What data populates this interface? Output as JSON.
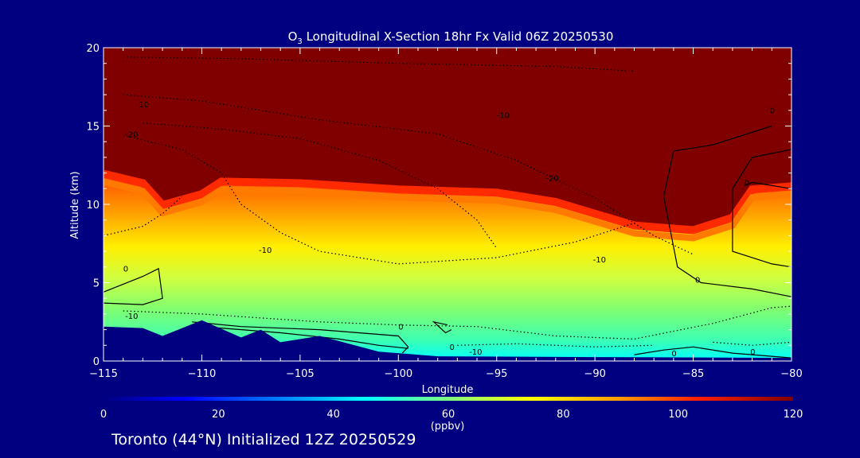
{
  "chart_data": {
    "type": "heatmap",
    "title_prefix": "O",
    "title_sub": "3",
    "title_rest": " Longitudinal X-Section 18hr  Fx Valid 06Z 20250530",
    "xlabel": "Longitude",
    "ylabel": "Altitude (km)",
    "xlim": [
      -115,
      -80
    ],
    "ylim": [
      0,
      20
    ],
    "x_ticks": [
      -115,
      -110,
      -105,
      -100,
      -95,
      -90,
      -85,
      -80
    ],
    "x_tick_labels": [
      "−115",
      "−110",
      "−105",
      "−100",
      "−95",
      "−90",
      "−85",
      "−80"
    ],
    "y_ticks": [
      0,
      5,
      10,
      15,
      20
    ],
    "y_tick_labels": [
      "0",
      "5",
      "10",
      "15",
      "20"
    ],
    "colorbar": {
      "label": "(ppbv)",
      "range": [
        0,
        120
      ],
      "ticks": [
        0,
        20,
        40,
        60,
        80,
        100,
        120
      ],
      "tick_labels": [
        "0",
        "20",
        "40",
        "60",
        "80",
        "100",
        "120"
      ]
    },
    "tropopause_km": [
      [
        -115,
        11.8
      ],
      [
        -113,
        11.2
      ],
      [
        -112,
        9.8
      ],
      [
        -110,
        10.5
      ],
      [
        -109,
        11.3
      ],
      [
        -105,
        11.2
      ],
      [
        -100,
        10.8
      ],
      [
        -95,
        10.6
      ],
      [
        -92,
        10.0
      ],
      [
        -88,
        8.5
      ],
      [
        -85,
        8.2
      ],
      [
        -83,
        9.0
      ],
      [
        -82,
        10.8
      ],
      [
        -80,
        11.0
      ]
    ],
    "terrain_km": [
      [
        -115,
        2.2
      ],
      [
        -113,
        2.1
      ],
      [
        -112,
        1.6
      ],
      [
        -110,
        2.6
      ],
      [
        -108,
        1.5
      ],
      [
        -107,
        2.0
      ],
      [
        -106,
        1.2
      ],
      [
        -104,
        1.6
      ],
      [
        -101,
        0.6
      ],
      [
        -98,
        0.3
      ],
      [
        -90,
        0.25
      ],
      [
        -80,
        0.2
      ]
    ],
    "contour_labels": [
      {
        "text": "10",
        "x": -113.2,
        "y": 16.2
      },
      {
        "text": "-20",
        "x": -113.9,
        "y": 14.3
      },
      {
        "text": "-10",
        "x": -95.0,
        "y": 15.5
      },
      {
        "text": "-20",
        "x": -92.5,
        "y": 11.5
      },
      {
        "text": "-10",
        "x": -107.1,
        "y": 6.9
      },
      {
        "text": "-10",
        "x": -90.1,
        "y": 6.3
      },
      {
        "text": "0",
        "x": -114.0,
        "y": 5.7
      },
      {
        "text": "-10",
        "x": -113.9,
        "y": 2.7
      },
      {
        "text": "0",
        "x": -82.4,
        "y": 11.2
      },
      {
        "text": "0",
        "x": -84.9,
        "y": 5.0
      },
      {
        "text": "0",
        "x": -81.1,
        "y": 15.8
      },
      {
        "text": "0",
        "x": -100.0,
        "y": 2.0
      },
      {
        "text": "0",
        "x": -97.4,
        "y": 0.7
      },
      {
        "text": "-10",
        "x": -96.4,
        "y": 0.4
      },
      {
        "text": "0",
        "x": -86.1,
        "y": 0.3
      },
      {
        "text": "0",
        "x": -82.1,
        "y": 0.4
      }
    ]
  },
  "footer": "Toronto (44°N) Initialized 12Z 20250529"
}
